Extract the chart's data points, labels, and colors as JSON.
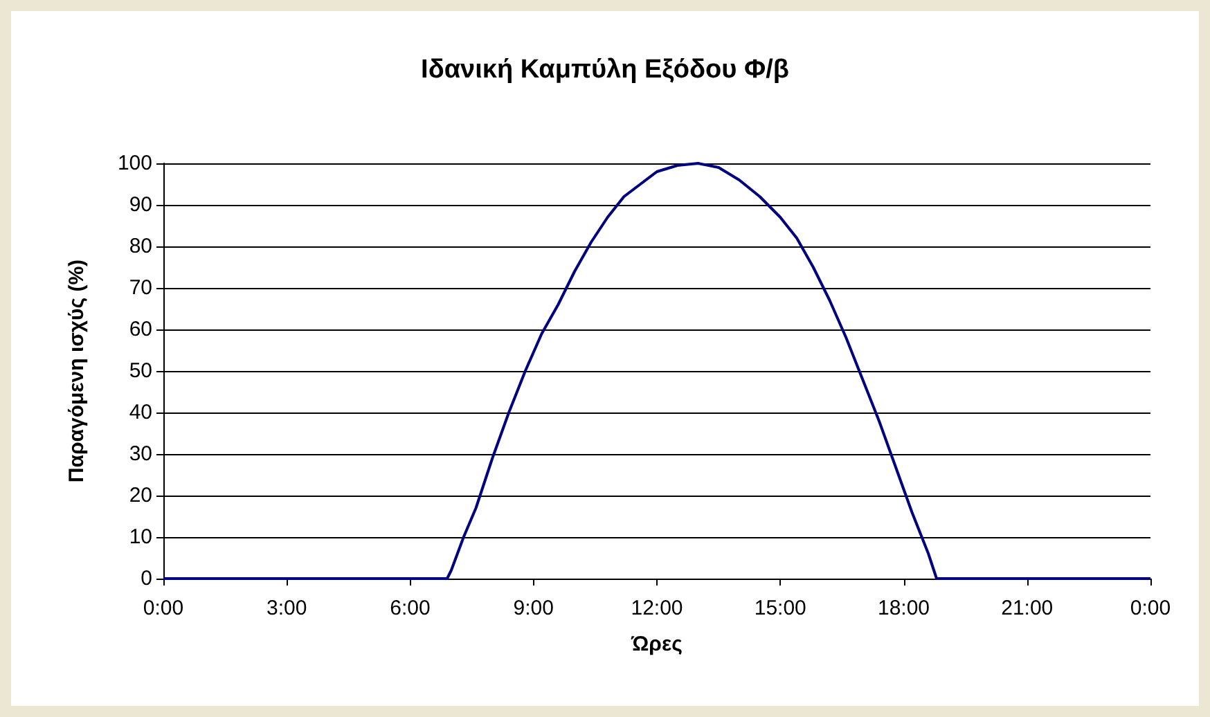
{
  "chart_data": {
    "type": "line",
    "title": "Ιδανική Καμπύλη Εξόδου Φ/β",
    "xlabel": "Ώρες",
    "ylabel": "Παραγόμενη ισχύς (%)",
    "x": [
      0,
      6.5,
      6.9,
      7.0,
      7.3,
      7.6,
      8.0,
      8.4,
      8.8,
      9.2,
      9.6,
      10.0,
      10.4,
      10.8,
      11.2,
      11.6,
      12.0,
      12.5,
      13.0,
      13.5,
      14.0,
      14.5,
      15.0,
      15.4,
      15.8,
      16.2,
      16.6,
      17.0,
      17.4,
      17.8,
      18.2,
      18.6,
      18.8,
      19.1,
      19.4,
      24
    ],
    "series": [
      {
        "color": "#000080",
        "values": [
          0,
          0,
          0,
          2,
          10,
          17,
          29,
          40,
          50,
          59,
          66,
          74,
          81,
          87,
          92,
          95,
          98,
          99.5,
          100,
          99,
          96,
          92,
          87,
          82,
          75,
          67,
          58,
          48,
          38,
          27,
          16,
          6,
          0,
          0,
          0,
          0
        ]
      }
    ],
    "xlim": [
      0,
      24
    ],
    "xticks": [
      {
        "value": 0,
        "label": "0:00"
      },
      {
        "value": 3,
        "label": "3:00"
      },
      {
        "value": 6,
        "label": "6:00"
      },
      {
        "value": 9,
        "label": "9:00"
      },
      {
        "value": 12,
        "label": "12:00"
      },
      {
        "value": 15,
        "label": "15:00"
      },
      {
        "value": 18,
        "label": "18:00"
      },
      {
        "value": 21,
        "label": "21:00"
      },
      {
        "value": 24,
        "label": "0:00"
      }
    ],
    "ylim": [
      0,
      100
    ],
    "yticks": [
      0,
      10,
      20,
      30,
      40,
      50,
      60,
      70,
      80,
      90,
      100
    ],
    "grid": "y",
    "marker": "none",
    "line_style": "solid"
  }
}
